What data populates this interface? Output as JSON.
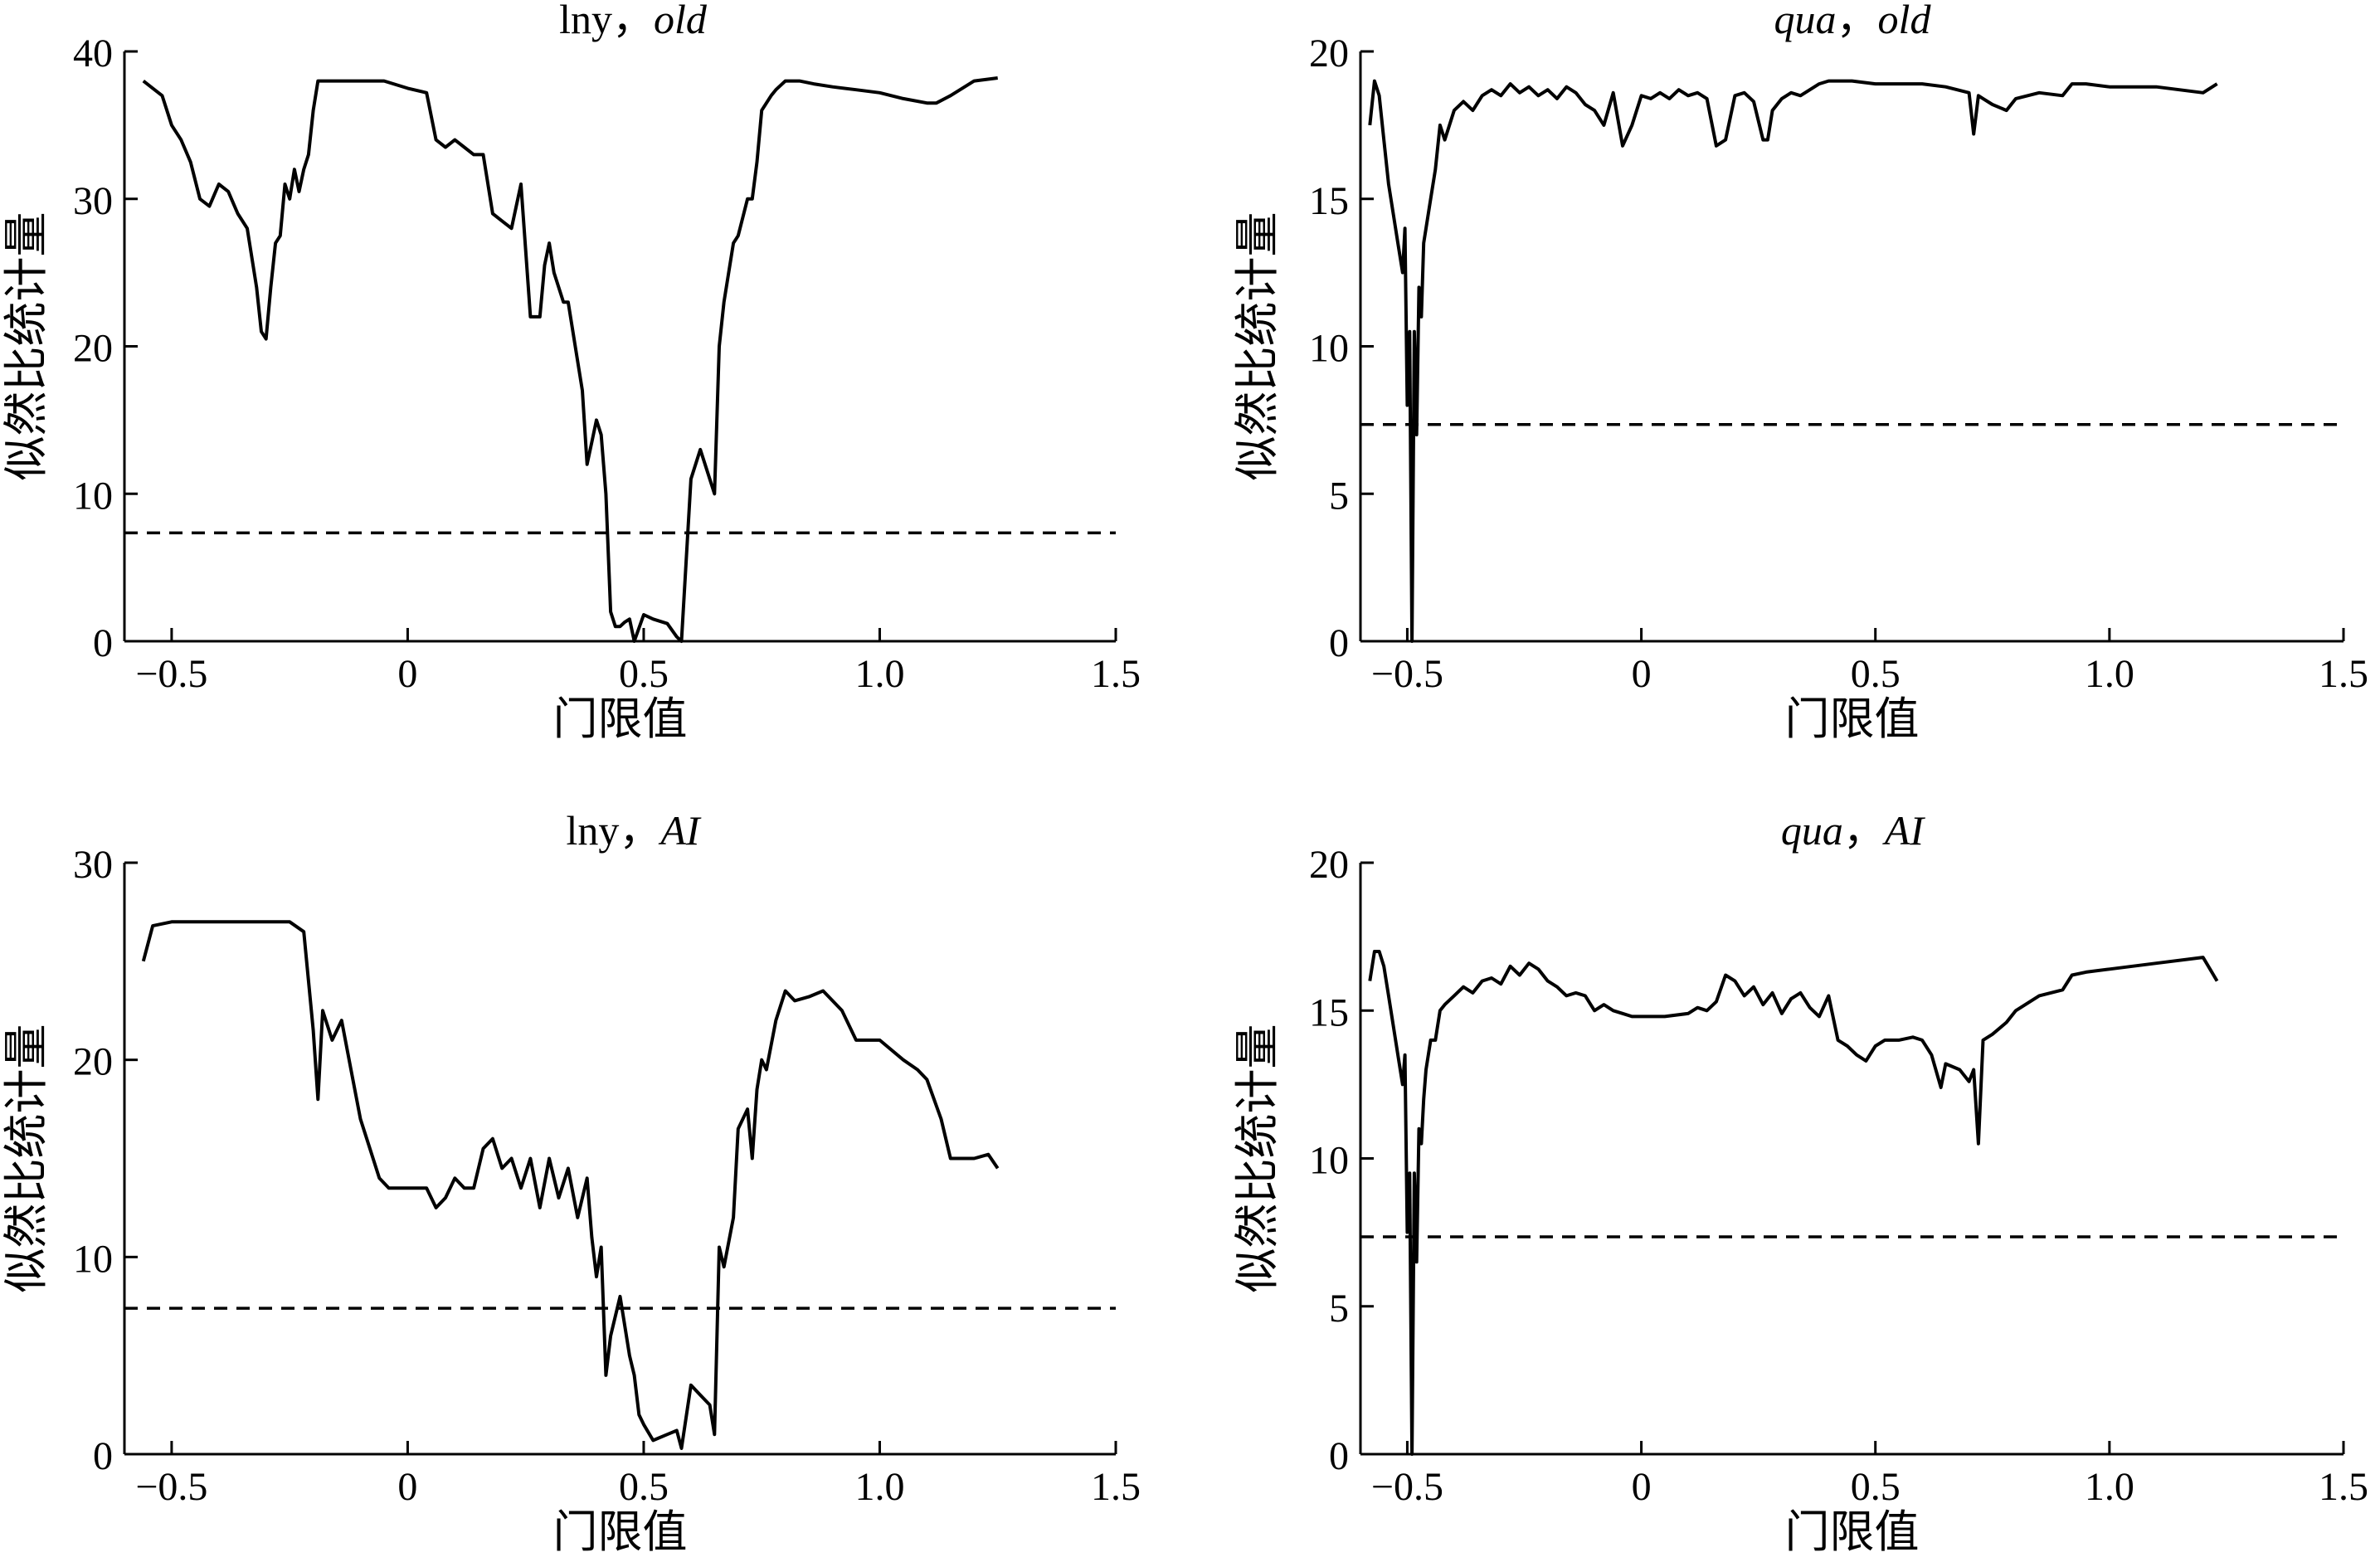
{
  "chart_data": [
    {
      "type": "line",
      "title": "lny，old",
      "title_parts": [
        {
          "text": "lny",
          "italic": false
        },
        {
          "text": "，",
          "italic": false
        },
        {
          "text": "old",
          "italic": true
        }
      ],
      "xlabel": "门限值",
      "ylabel": "似然比统计量",
      "xlim": [
        -0.6,
        1.5
      ],
      "ylim": [
        0,
        40
      ],
      "xticks": [
        -0.5,
        0,
        0.5,
        1.0,
        1.5
      ],
      "xtick_labels": [
        "−0.5",
        "0",
        "0.5",
        "1.0",
        "1.5"
      ],
      "yticks": [
        0,
        10,
        20,
        30,
        40
      ],
      "ytick_labels": [
        "0",
        "10",
        "20",
        "30",
        "40"
      ],
      "grid": false,
      "reference_line": {
        "y": 7.35,
        "style": "dashed"
      },
      "x": [
        -0.56,
        -0.54,
        -0.52,
        -0.5,
        -0.48,
        -0.46,
        -0.44,
        -0.42,
        -0.4,
        -0.38,
        -0.36,
        -0.34,
        -0.32,
        -0.31,
        -0.3,
        -0.29,
        -0.28,
        -0.27,
        -0.26,
        -0.25,
        -0.24,
        -0.23,
        -0.22,
        -0.21,
        -0.2,
        -0.19,
        -0.18,
        -0.15,
        -0.1,
        -0.05,
        0,
        0.04,
        0.06,
        0.08,
        0.1,
        0.12,
        0.14,
        0.16,
        0.18,
        0.2,
        0.22,
        0.24,
        0.26,
        0.28,
        0.29,
        0.3,
        0.31,
        0.32,
        0.33,
        0.34,
        0.36,
        0.37,
        0.38,
        0.39,
        0.4,
        0.41,
        0.42,
        0.43,
        0.44,
        0.45,
        0.46,
        0.47,
        0.48,
        0.5,
        0.52,
        0.55,
        0.57,
        0.58,
        0.6,
        0.62,
        0.64,
        0.65,
        0.66,
        0.67,
        0.69,
        0.7,
        0.72,
        0.73,
        0.74,
        0.75,
        0.76,
        0.77,
        0.78,
        0.8,
        0.83,
        0.86,
        0.9,
        0.95,
        1.0,
        1.05,
        1.1,
        1.12,
        1.15,
        1.2,
        1.25
      ],
      "y": [
        38,
        37.5,
        37,
        35,
        34,
        32.5,
        30,
        29.5,
        31,
        30.5,
        29,
        28,
        24,
        21,
        20.5,
        24,
        27,
        27.5,
        31,
        30,
        32,
        30.5,
        32,
        33,
        36,
        38,
        38,
        38,
        38,
        38,
        37.5,
        37.2,
        34,
        33.5,
        34,
        33.5,
        33,
        33,
        29,
        28.5,
        28,
        31,
        22,
        22,
        25.5,
        27,
        25,
        24,
        23,
        23,
        19,
        17,
        12,
        13.5,
        15,
        14,
        10,
        2,
        1,
        1,
        1.3,
        1.5,
        0,
        1.8,
        1.5,
        1.2,
        0.3,
        0,
        11,
        13,
        11,
        10,
        20,
        23,
        27,
        27.5,
        30,
        30,
        32.5,
        36,
        36.5,
        37,
        37.4,
        38,
        38,
        37.8,
        37.6,
        37.4,
        37.2,
        36.8,
        36.5,
        36.5,
        37,
        38,
        38.2
      ]
    },
    {
      "type": "line",
      "title": "qua，old",
      "title_parts": [
        {
          "text": "qua",
          "italic": true
        },
        {
          "text": "，",
          "italic": false
        },
        {
          "text": "old",
          "italic": true
        }
      ],
      "xlabel": "门限值",
      "ylabel": "似然比统计量",
      "xlim": [
        -0.6,
        1.5
      ],
      "ylim": [
        0,
        20
      ],
      "xticks": [
        -0.5,
        0,
        0.5,
        1.0,
        1.5
      ],
      "xtick_labels": [
        "−0.5",
        "0",
        "0.5",
        "1.0",
        "1.5"
      ],
      "yticks": [
        0,
        5,
        10,
        15,
        20
      ],
      "ytick_labels": [
        "0",
        "5",
        "10",
        "15",
        "20"
      ],
      "grid": false,
      "reference_line": {
        "y": 7.35,
        "style": "dashed"
      },
      "x": [
        -0.58,
        -0.57,
        -0.56,
        -0.55,
        -0.54,
        -0.53,
        -0.52,
        -0.51,
        -0.505,
        -0.5,
        -0.495,
        -0.49,
        -0.485,
        -0.48,
        -0.475,
        -0.47,
        -0.465,
        -0.46,
        -0.45,
        -0.44,
        -0.43,
        -0.42,
        -0.4,
        -0.38,
        -0.36,
        -0.34,
        -0.32,
        -0.3,
        -0.28,
        -0.26,
        -0.24,
        -0.22,
        -0.2,
        -0.18,
        -0.16,
        -0.14,
        -0.12,
        -0.1,
        -0.08,
        -0.06,
        -0.04,
        -0.02,
        0,
        0.02,
        0.04,
        0.06,
        0.08,
        0.1,
        0.12,
        0.14,
        0.16,
        0.18,
        0.2,
        0.22,
        0.24,
        0.26,
        0.27,
        0.28,
        0.3,
        0.32,
        0.34,
        0.36,
        0.38,
        0.4,
        0.45,
        0.5,
        0.55,
        0.6,
        0.65,
        0.7,
        0.71,
        0.72,
        0.73,
        0.75,
        0.78,
        0.8,
        0.85,
        0.9,
        0.92,
        0.95,
        1.0,
        1.1,
        1.2,
        1.23
      ],
      "y": [
        17.5,
        19,
        18.5,
        17,
        15.5,
        14.5,
        13.5,
        12.5,
        14,
        8,
        10.5,
        0,
        10.5,
        7,
        12,
        11,
        13.5,
        14,
        15,
        16,
        17.5,
        17,
        18,
        18.3,
        18,
        18.5,
        18.7,
        18.5,
        18.9,
        18.6,
        18.8,
        18.5,
        18.7,
        18.4,
        18.8,
        18.6,
        18.2,
        18,
        17.5,
        18.6,
        16.8,
        17.5,
        18.5,
        18.4,
        18.6,
        18.4,
        18.7,
        18.5,
        18.6,
        18.4,
        16.8,
        17,
        18.5,
        18.6,
        18.3,
        17,
        17,
        18,
        18.4,
        18.6,
        18.5,
        18.7,
        18.9,
        19,
        19,
        18.9,
        18.9,
        18.9,
        18.8,
        18.6,
        17.2,
        18.5,
        18.4,
        18.2,
        18,
        18.4,
        18.6,
        18.5,
        18.9,
        18.9,
        18.8,
        18.8,
        18.6,
        18.9
      ]
    },
    {
      "type": "line",
      "title": "lny，AI",
      "title_parts": [
        {
          "text": "lny",
          "italic": false
        },
        {
          "text": "，",
          "italic": false
        },
        {
          "text": "AI",
          "italic": true
        }
      ],
      "xlabel": "门限值",
      "ylabel": "似然比统计量",
      "xlim": [
        -0.6,
        1.5
      ],
      "ylim": [
        0,
        30
      ],
      "xticks": [
        -0.5,
        0,
        0.5,
        1.0,
        1.5
      ],
      "xtick_labels": [
        "−0.5",
        "0",
        "0.5",
        "1.0",
        "1.5"
      ],
      "yticks": [
        0,
        10,
        20,
        30
      ],
      "ytick_labels": [
        "0",
        "10",
        "20",
        "30"
      ],
      "grid": false,
      "reference_line": {
        "y": 7.4,
        "style": "dashed"
      },
      "x": [
        -0.56,
        -0.54,
        -0.5,
        -0.45,
        -0.4,
        -0.35,
        -0.3,
        -0.25,
        -0.22,
        -0.21,
        -0.2,
        -0.19,
        -0.18,
        -0.16,
        -0.14,
        -0.12,
        -0.1,
        -0.08,
        -0.06,
        -0.04,
        -0.02,
        0,
        0.02,
        0.04,
        0.06,
        0.08,
        0.1,
        0.12,
        0.14,
        0.16,
        0.18,
        0.2,
        0.22,
        0.24,
        0.26,
        0.28,
        0.3,
        0.32,
        0.34,
        0.36,
        0.38,
        0.39,
        0.4,
        0.41,
        0.42,
        0.43,
        0.44,
        0.45,
        0.46,
        0.47,
        0.48,
        0.49,
        0.5,
        0.52,
        0.55,
        0.57,
        0.58,
        0.6,
        0.62,
        0.64,
        0.65,
        0.66,
        0.67,
        0.69,
        0.7,
        0.72,
        0.73,
        0.74,
        0.75,
        0.76,
        0.78,
        0.8,
        0.82,
        0.85,
        0.88,
        0.9,
        0.92,
        0.95,
        1.0,
        1.05,
        1.08,
        1.1,
        1.13,
        1.15,
        1.2,
        1.23,
        1.25
      ],
      "y": [
        25,
        26.8,
        27,
        27,
        27,
        27,
        27,
        27,
        26.5,
        24,
        21.5,
        18,
        22.5,
        21,
        22,
        19.5,
        17,
        15.5,
        14,
        13.5,
        13.5,
        13.5,
        13.5,
        13.5,
        12.5,
        13,
        14,
        13.5,
        13.5,
        15.5,
        16,
        14.5,
        15,
        13.5,
        15,
        12.5,
        15,
        13,
        14.5,
        12,
        14,
        11,
        9,
        10.5,
        4,
        6,
        7,
        8,
        6.5,
        5,
        4,
        2,
        1.5,
        0.7,
        1,
        1.2,
        0.3,
        3.5,
        3,
        2.5,
        1,
        10.5,
        9.5,
        12,
        16.5,
        17.5,
        15,
        18.5,
        20,
        19.5,
        22,
        23.5,
        23,
        23.2,
        23.5,
        23,
        22.5,
        21,
        21,
        20,
        19.5,
        19,
        17,
        15,
        15,
        15.2,
        14.5
      ]
    },
    {
      "type": "line",
      "title": "qua，AI",
      "title_parts": [
        {
          "text": "qua",
          "italic": true
        },
        {
          "text": "，",
          "italic": false
        },
        {
          "text": "AI",
          "italic": true
        }
      ],
      "xlabel": "门限值",
      "ylabel": "似然比统计量",
      "xlim": [
        -0.6,
        1.5
      ],
      "ylim": [
        0,
        20
      ],
      "xticks": [
        -0.5,
        0,
        0.5,
        1.0,
        1.5
      ],
      "xtick_labels": [
        "−0.5",
        "0",
        "0.5",
        "1.0",
        "1.5"
      ],
      "yticks": [
        0,
        5,
        10,
        15,
        20
      ],
      "ytick_labels": [
        "0",
        "5",
        "10",
        "15",
        "20"
      ],
      "grid": false,
      "reference_line": {
        "y": 7.35,
        "style": "dashed"
      },
      "x": [
        -0.58,
        -0.57,
        -0.56,
        -0.55,
        -0.54,
        -0.53,
        -0.52,
        -0.51,
        -0.505,
        -0.5,
        -0.495,
        -0.49,
        -0.485,
        -0.48,
        -0.475,
        -0.47,
        -0.465,
        -0.46,
        -0.45,
        -0.44,
        -0.43,
        -0.42,
        -0.4,
        -0.38,
        -0.36,
        -0.34,
        -0.32,
        -0.3,
        -0.28,
        -0.26,
        -0.24,
        -0.22,
        -0.2,
        -0.18,
        -0.16,
        -0.14,
        -0.12,
        -0.1,
        -0.08,
        -0.06,
        -0.04,
        -0.02,
        0,
        0.05,
        0.1,
        0.12,
        0.14,
        0.16,
        0.18,
        0.2,
        0.22,
        0.24,
        0.26,
        0.28,
        0.3,
        0.32,
        0.34,
        0.36,
        0.38,
        0.4,
        0.42,
        0.44,
        0.46,
        0.48,
        0.5,
        0.52,
        0.55,
        0.58,
        0.6,
        0.62,
        0.64,
        0.65,
        0.68,
        0.7,
        0.71,
        0.72,
        0.73,
        0.75,
        0.78,
        0.8,
        0.85,
        0.9,
        0.92,
        0.95,
        1.0,
        1.1,
        1.2,
        1.23
      ],
      "y": [
        16,
        17,
        17,
        16.5,
        15.5,
        14.5,
        13.5,
        12.5,
        13.5,
        7.5,
        9.5,
        0,
        9.5,
        6.5,
        11,
        10.5,
        12,
        13,
        14,
        14,
        15,
        15.2,
        15.5,
        15.8,
        15.6,
        16,
        16.1,
        15.9,
        16.5,
        16.2,
        16.6,
        16.4,
        16,
        15.8,
        15.5,
        15.6,
        15.5,
        15,
        15.2,
        15,
        14.9,
        14.8,
        14.8,
        14.8,
        14.9,
        15.1,
        15,
        15.3,
        16.2,
        16,
        15.5,
        15.8,
        15.2,
        15.6,
        14.9,
        15.4,
        15.6,
        15.1,
        14.8,
        15.5,
        14,
        13.8,
        13.5,
        13.3,
        13.8,
        14,
        14,
        14.1,
        14,
        13.5,
        12.4,
        13.2,
        13,
        12.6,
        13,
        10.5,
        14,
        14.2,
        14.6,
        15,
        15.5,
        15.7,
        16.2,
        16.3,
        16.4,
        16.6,
        16.8,
        16
      ]
    }
  ]
}
